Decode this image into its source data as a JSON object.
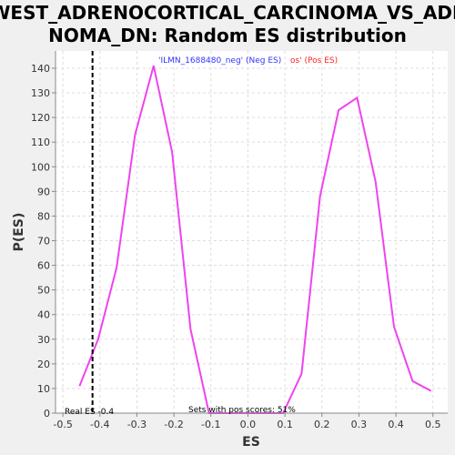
{
  "chart_data": {
    "type": "line",
    "title_line1": "WEST_ADRENOCORTICAL_CARCINOMA_VS_ADE",
    "title_line2": "NOMA_DN: Random ES distribution",
    "xlabel": "ES",
    "ylabel": "P(ES)",
    "xlim": [
      -0.52,
      0.54
    ],
    "ylim": [
      0,
      147
    ],
    "xticks": [
      "-0.5",
      "-0.4",
      "-0.3",
      "-0.2",
      "-0.1",
      "0.0",
      "0.1",
      "0.2",
      "0.3",
      "0.4",
      "0.5"
    ],
    "xtick_values": [
      -0.5,
      -0.4,
      -0.3,
      -0.2,
      -0.1,
      0.0,
      0.1,
      0.2,
      0.3,
      0.4,
      0.5
    ],
    "yticks": [
      "0",
      "10",
      "20",
      "30",
      "40",
      "50",
      "60",
      "70",
      "80",
      "90",
      "100",
      "110",
      "120",
      "130",
      "140"
    ],
    "ytick_values": [
      0,
      10,
      20,
      30,
      40,
      50,
      60,
      70,
      80,
      90,
      100,
      110,
      120,
      130,
      140
    ],
    "grid": true,
    "series": [
      {
        "color": "#ee44ee",
        "x": [
          -0.455,
          -0.405,
          -0.355,
          -0.305,
          -0.255,
          -0.205,
          -0.155,
          -0.105,
          -0.055,
          -0.005,
          0.045,
          0.095,
          0.145,
          0.195,
          0.245,
          0.295,
          0.345,
          0.395,
          0.445,
          0.495
        ],
        "y": [
          11,
          30,
          59,
          113,
          141,
          106,
          34,
          0,
          0,
          0,
          0,
          0,
          16,
          88,
          123,
          128,
          94,
          35,
          13,
          9
        ]
      }
    ],
    "legend": {
      "placement": "top-center",
      "neg_text": "'ILMN_1688480_neg' (Neg ES)",
      "pos_text": "os' (Pos ES)",
      "neg_color": "#3333ff",
      "pos_color": "#ff2222"
    },
    "real_es": {
      "value": -0.42,
      "label": "Real ES -0.4"
    },
    "sets_label": "Sets with pos scores: 51%"
  }
}
